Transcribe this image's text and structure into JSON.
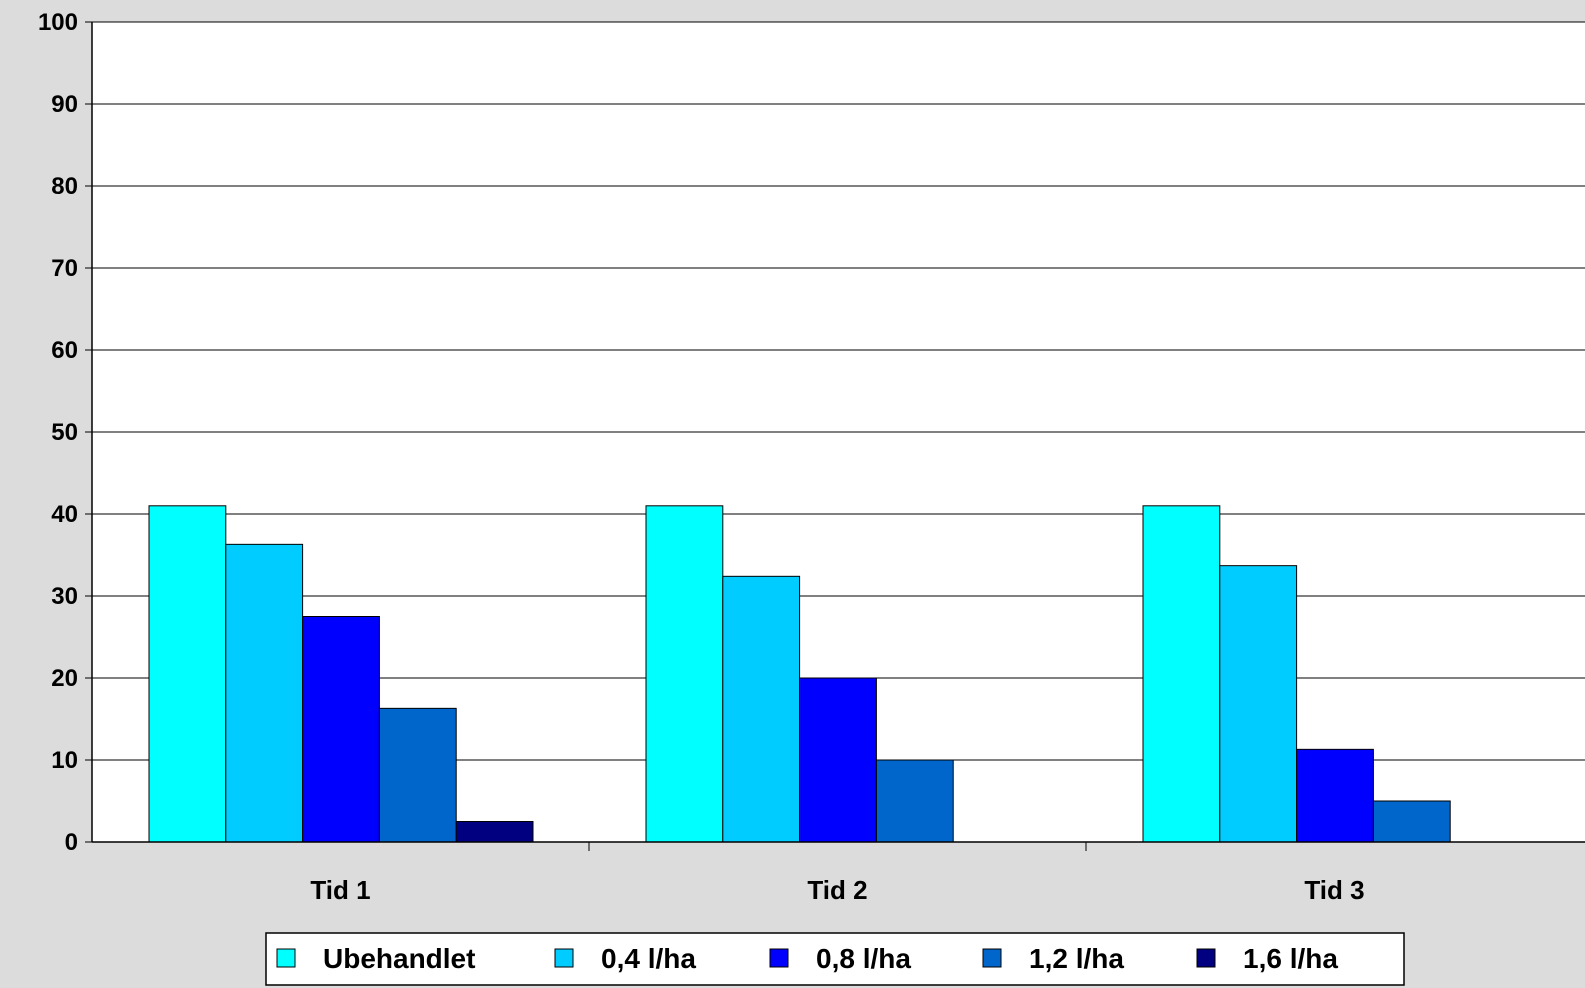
{
  "chart_data": {
    "type": "bar",
    "title": "",
    "xlabel": "",
    "ylabel": "",
    "ylim": [
      0,
      100
    ],
    "yticks": [
      0,
      10,
      20,
      30,
      40,
      50,
      60,
      70,
      80,
      90,
      100
    ],
    "grid": true,
    "legend_position": "bottom",
    "categories": [
      "Tid 1",
      "Tid 2",
      "Tid 3"
    ],
    "series": [
      {
        "name": "Ubehandlet",
        "color": "#00ffff",
        "values": [
          41,
          41,
          41
        ]
      },
      {
        "name": "0,4 l/ha",
        "color": "#00ccff",
        "values": [
          36.3,
          32.4,
          33.7
        ]
      },
      {
        "name": "0,8 l/ha",
        "color": "#0000ff",
        "values": [
          27.5,
          20,
          11.3
        ]
      },
      {
        "name": "1,2 l/ha",
        "color": "#0066cc",
        "values": [
          16.3,
          10,
          5
        ]
      },
      {
        "name": "1,6 l/ha",
        "color": "#000080",
        "values": [
          2.5,
          0,
          0
        ]
      }
    ]
  }
}
